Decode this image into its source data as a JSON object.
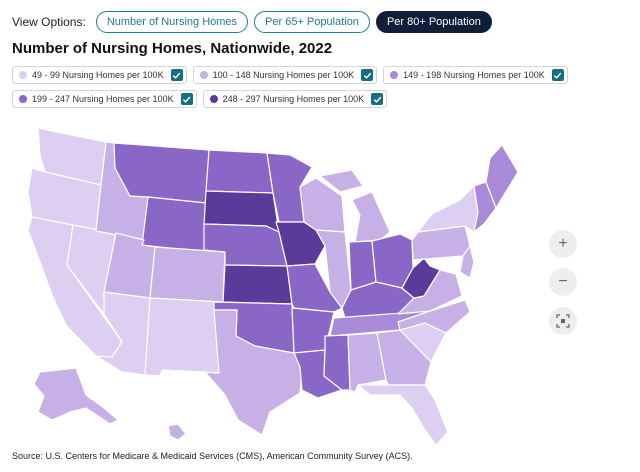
{
  "view_options": {
    "label": "View Options:",
    "buttons": [
      {
        "label": "Number of Nursing Homes",
        "active": false
      },
      {
        "label": "Per 65+ Population",
        "active": false
      },
      {
        "label": "Per 80+ Population",
        "active": true
      }
    ]
  },
  "title": "Number of Nursing Homes, Nationwide, 2022",
  "legend": [
    {
      "label": "49 - 99 Nursing Homes per 100K",
      "color": "#dccff1",
      "checked": true
    },
    {
      "label": "100 - 148 Nursing Homes per 100K",
      "color": "#c6b0e6",
      "checked": true
    },
    {
      "label": "149 - 198 Nursing Homes per 100K",
      "color": "#a88ad8",
      "checked": true
    },
    {
      "label": "199 - 247 Nursing Homes per 100K",
      "color": "#8a66c6",
      "checked": true
    },
    {
      "label": "248 - 297 Nursing Homes per 100K",
      "color": "#5b3a99",
      "checked": true
    }
  ],
  "map": {
    "class_colors": [
      "#dccff1",
      "#c6b0e6",
      "#a88ad8",
      "#8a66c6",
      "#5b3a99"
    ],
    "state_classes": {
      "washington": 0,
      "oregon": 0,
      "california": 0,
      "nevada": 0,
      "arizona": 0,
      "new-mexico": 0,
      "idaho": 1,
      "utah": 1,
      "colorado": 1,
      "texas": 1,
      "montana": 3,
      "wyoming": 3,
      "north-dakota": 3,
      "south-dakota": 4,
      "nebraska": 3,
      "kansas": 4,
      "oklahoma": 3,
      "minnesota": 3,
      "iowa": 4,
      "missouri": 3,
      "arkansas": 3,
      "louisiana": 3,
      "wisconsin": 1,
      "illinois": 1,
      "michigan": 1,
      "indiana": 3,
      "ohio": 3,
      "kentucky": 3,
      "tennessee": 2,
      "mississippi": 3,
      "alabama": 1,
      "georgia": 1,
      "florida": 0,
      "south-carolina": 0,
      "north-carolina": 1,
      "virginia": 1,
      "west-virginia": 4,
      "pennsylvania": 1,
      "new-york": 0,
      "maine": 2,
      "new-england": 2,
      "alaska": 1,
      "hawaii": 1
    }
  },
  "zoom": {
    "in_symbol": "+",
    "out_symbol": "−"
  },
  "source": "Source: U.S. Centers for Medicare & Medicaid Services (CMS), American Community Survey (ACS)."
}
